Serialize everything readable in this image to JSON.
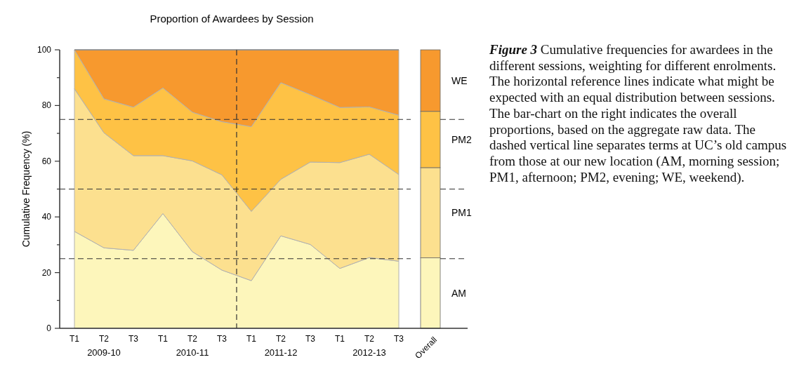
{
  "chart_data": [
    {
      "type": "area",
      "title": "Proportion of Awardees by Session",
      "ylabel": "Cumulative Frequency (%)",
      "stacked": true,
      "categories": [
        "T1",
        "T2",
        "T3",
        "T1",
        "T2",
        "T3",
        "T1",
        "T2",
        "T3",
        "T1",
        "T2",
        "T3"
      ],
      "series": [
        {
          "color": "#fdf6bb",
          "values": [
            34.8,
            28.9,
            28.0,
            41.2,
            27.5,
            20.9,
            17.1,
            33.2,
            30.1,
            21.5,
            25.4,
            24.1
          ]
        },
        {
          "color": "#fce08f",
          "values": [
            51.2,
            41.3,
            34.0,
            20.8,
            32.6,
            34.2,
            24.9,
            20.3,
            29.6,
            38.0,
            37.1,
            31.1
          ]
        },
        {
          "color": "#fec245",
          "values": [
            14.0,
            12.2,
            17.4,
            24.3,
            17.5,
            19.1,
            30.4,
            34.7,
            24.2,
            19.8,
            17.0,
            21.3
          ]
        },
        {
          "color": "#f7992e",
          "values": [
            0,
            17.6,
            20.6,
            13.7,
            22.4,
            25.8,
            27.6,
            11.8,
            16.1,
            20.7,
            20.5,
            23.5
          ]
        }
      ],
      "ylim": [
        0,
        100
      ],
      "yticks": [
        0,
        {
          "value": 10,
          "label": null
        },
        20,
        {
          "value": 30,
          "label": null
        },
        40,
        {
          "value": 50,
          "label": null
        },
        60,
        {
          "value": 70,
          "label": null
        },
        80,
        {
          "value": 90,
          "label": null
        },
        100
      ],
      "grid": false,
      "ref_lines": [
        {
          "axis": "y",
          "value": 25,
          "line_style": "dashed"
        },
        {
          "axis": "y",
          "value": 50,
          "line_style": "dashed"
        },
        {
          "axis": "y",
          "value": 75,
          "line_style": "dashed"
        }
      ],
      "annotations": [
        "2009-10",
        "2010-11",
        "2011-12",
        "2012-13",
        "Figure 3",
        "Cumulative frequencies for awardees in the different sessions, weighting for different enrolments. The horizontal reference lines indicate what might be expected with an equal distribution between sessions. The bar-chart on the right indicates the overall proportions, based on the aggregate raw data. The dashed vertical line separates terms at UC’s old campus from those at our new location (AM, morning session; PM1, afternoon; PM2, evening; WE, weekend)."
      ]
    },
    {
      "type": "bar",
      "stacked": true,
      "categories": [
        "Overall"
      ],
      "series": [
        {
          "name": "AM",
          "color": "#fdf6bb",
          "values": [
            25.3
          ]
        },
        {
          "name": "PM1",
          "color": "#fce08f",
          "values": [
            32.4
          ]
        },
        {
          "name": "PM2",
          "color": "#fec245",
          "values": [
            20.2
          ]
        },
        {
          "name": "WE",
          "color": "#f7992e",
          "values": [
            22.1
          ]
        }
      ],
      "ylim": [
        0,
        100
      ],
      "tick_labels": "x",
      "ref_lines": [
        {
          "axis": "y",
          "value": 25,
          "line_style": "dashed"
        },
        {
          "axis": "y",
          "value": 50,
          "line_style": "dashed"
        },
        {
          "axis": "y",
          "value": 75,
          "line_style": "dashed"
        }
      ]
    }
  ]
}
